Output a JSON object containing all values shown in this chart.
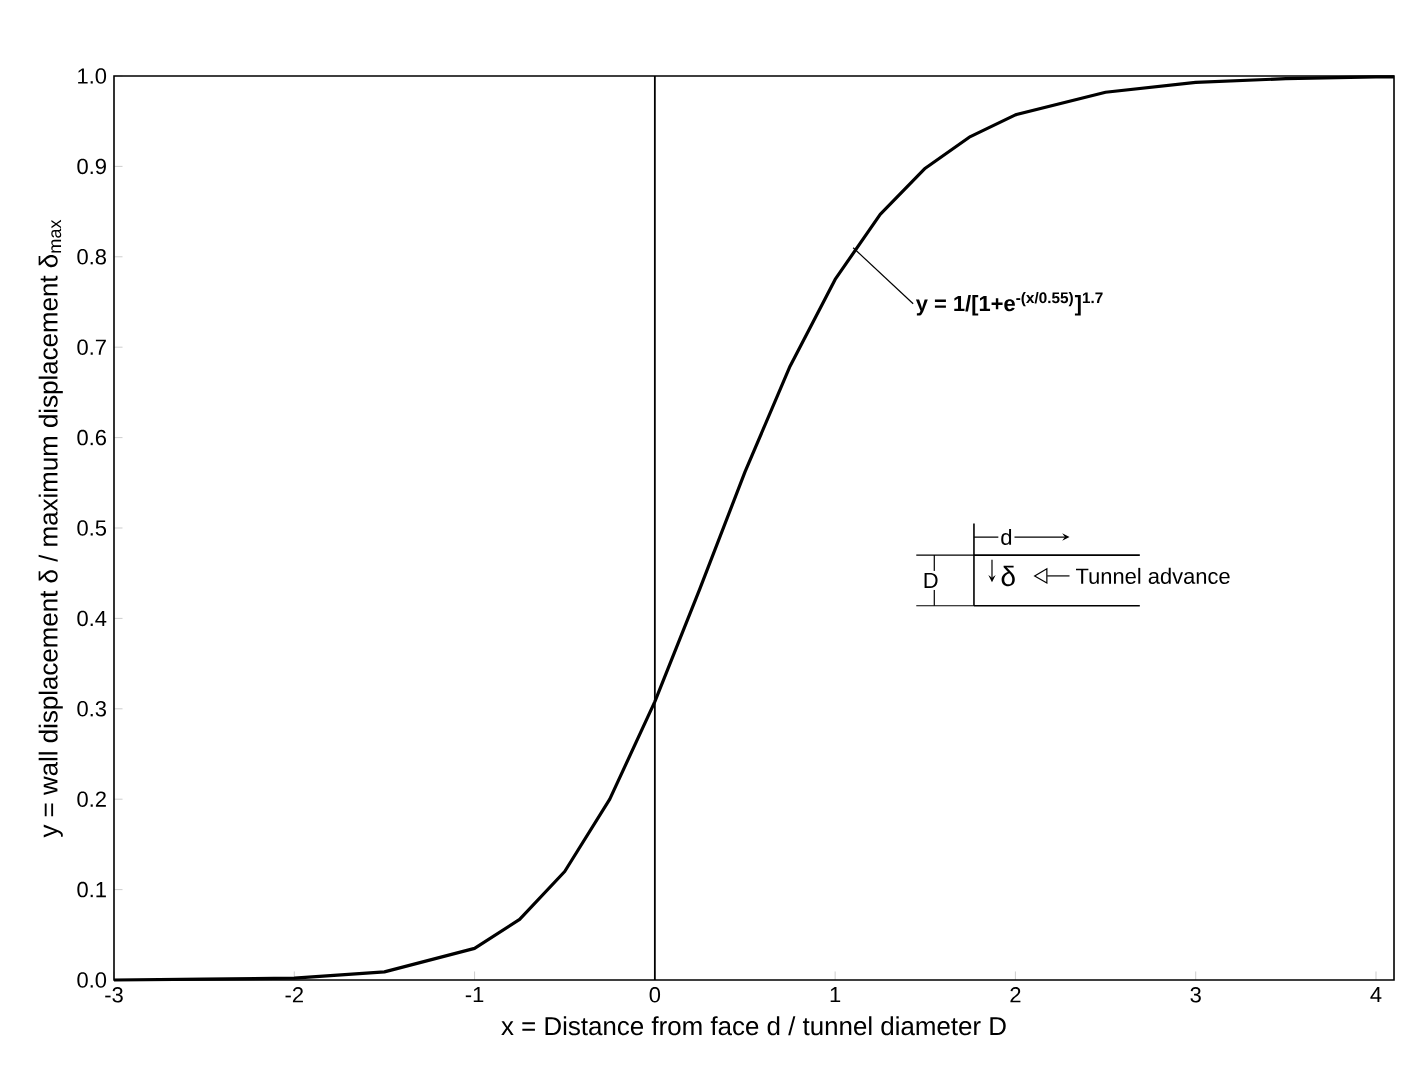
{
  "chart_data": {
    "type": "line",
    "xlabel": "x  = Distance from face d / tunnel diameter D",
    "ylabel": "y = wall displacement δ / maximum displacement δ$_{max}$",
    "x": [
      -3,
      -2.5,
      -2,
      -1.5,
      -1,
      -0.75,
      -0.5,
      -0.25,
      0,
      0.25,
      0.5,
      0.75,
      1,
      1.25,
      1.5,
      1.75,
      2,
      2.5,
      3,
      3.5,
      4,
      4.1
    ],
    "series": [
      {
        "color": "#000000",
        "values": [
          0.0,
          0.001,
          0.002,
          0.009,
          0.035,
          0.067,
          0.12,
          0.2,
          0.308,
          0.433,
          0.562,
          0.679,
          0.775,
          0.847,
          0.898,
          0.933,
          0.957,
          0.982,
          0.993,
          0.997,
          0.999,
          0.999
        ]
      }
    ],
    "xlim": [
      -3,
      4.1
    ],
    "ylim": [
      0,
      1
    ],
    "xticks": [
      -3,
      -2,
      -1,
      0,
      1,
      2,
      3,
      4
    ],
    "yticks": [
      {
        "value": 0,
        "label": "0.0"
      },
      {
        "value": 0.1,
        "label": "0.1"
      },
      {
        "value": 0.2,
        "label": "0.2"
      },
      {
        "value": 0.3,
        "label": "0.3"
      },
      {
        "value": 0.4,
        "label": "0.4"
      },
      {
        "value": 0.5,
        "label": "0.5"
      },
      {
        "value": 0.6,
        "label": "0.6"
      },
      {
        "value": 0.7,
        "label": "0.7"
      },
      {
        "value": 0.8,
        "label": "0.8"
      },
      {
        "value": 0.9,
        "label": "0.9"
      },
      {
        "value": 1,
        "label": "1.0"
      }
    ],
    "ref_lines": [
      {
        "axis": "x",
        "value": 0,
        "color": "#000000"
      }
    ],
    "annotations": [
      {
        "text": "y = 1/[1+e$^{-(x/0.55)}$]$^{1.7}$",
        "x": 1.1,
        "y": 0.81
      },
      "d",
      "D",
      "δ",
      "Tunnel advance"
    ],
    "grid": false,
    "marker": "none",
    "line_style": "solid"
  }
}
